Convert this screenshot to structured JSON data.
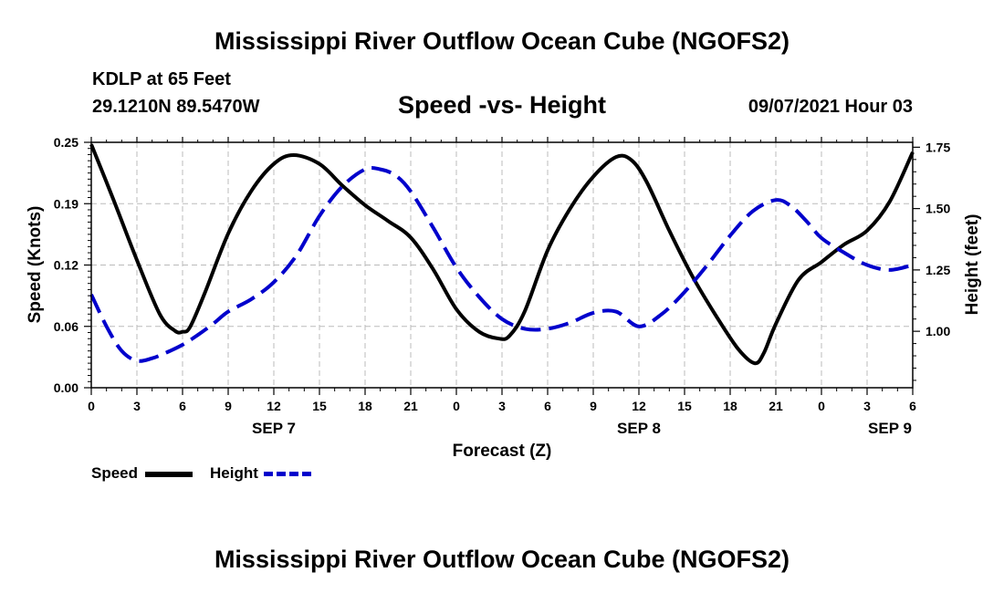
{
  "header": {
    "title": "Mississippi River Outflow Ocean Cube (NGOFS2)",
    "station": "KDLP at 65 Feet",
    "coordinates": "29.1210N  89.5470W",
    "chart_heading": "Speed -vs- Height",
    "run_time": "09/07/2021 Hour 03"
  },
  "footer": {
    "title": "Mississippi River Outflow Ocean Cube (NGOFS2)"
  },
  "legend": {
    "speed_label": "Speed",
    "height_label": "Height"
  },
  "colors": {
    "speed": "#000000",
    "height": "#0000cc",
    "grid": "#bbbbbb"
  },
  "chart_data": {
    "type": "line",
    "title": "Speed -vs- Height",
    "xlabel": "Forecast (Z)",
    "ylabel": "Speed (Knots)",
    "y2label": "Height (feet)",
    "x_unit": "forecast hours from 09/07/2021 00Z",
    "xlim": [
      0,
      54
    ],
    "ylim": [
      0,
      0.25
    ],
    "y2lim": [
      0.77,
      1.77
    ],
    "x_ticks": [
      0,
      3,
      6,
      9,
      12,
      15,
      18,
      21,
      24,
      27,
      30,
      33,
      36,
      39,
      42,
      45,
      48,
      51,
      54
    ],
    "x_tick_labels": [
      "0",
      "3",
      "6",
      "9",
      "12",
      "15",
      "18",
      "21",
      "0",
      "3",
      "6",
      "9",
      "12",
      "15",
      "18",
      "21",
      "0",
      "3",
      "6"
    ],
    "y_ticks": [
      0,
      0.0625,
      0.125,
      0.1875,
      0.25
    ],
    "y_tick_labels": [
      "0.00",
      "0.06",
      "0.12",
      "0.19",
      "0.25"
    ],
    "y2_ticks": [
      1.0,
      1.25,
      1.5,
      1.75
    ],
    "y2_tick_labels": [
      "1.00",
      "1.25",
      "1.50",
      "1.75"
    ],
    "date_labels": [
      {
        "x": 12,
        "label": "SEP 7"
      },
      {
        "x": 36,
        "label": "SEP 8"
      },
      {
        "x": 52.5,
        "label": "SEP 9"
      }
    ],
    "grid": true,
    "series": [
      {
        "name": "Speed",
        "axis": "left",
        "style": "solid",
        "x": [
          0,
          1.5,
          3,
          4.5,
          5.5,
          6,
          6.5,
          7.5,
          9,
          10.5,
          12,
          13.3,
          15,
          16.5,
          18,
          19.5,
          21,
          22.5,
          24,
          25.5,
          26.8,
          27.5,
          28.5,
          30,
          31.5,
          33,
          34.5,
          35.5,
          36.5,
          38,
          39.5,
          41,
          42.5,
          43.6,
          44.2,
          45,
          46.5,
          48,
          49.5,
          51,
          52.5,
          54
        ],
        "values": [
          0.248,
          0.19,
          0.13,
          0.075,
          0.058,
          0.057,
          0.062,
          0.098,
          0.157,
          0.2,
          0.228,
          0.237,
          0.228,
          0.206,
          0.186,
          0.17,
          0.153,
          0.12,
          0.08,
          0.057,
          0.05,
          0.053,
          0.078,
          0.14,
          0.183,
          0.215,
          0.235,
          0.232,
          0.21,
          0.16,
          0.114,
          0.075,
          0.04,
          0.025,
          0.035,
          0.065,
          0.11,
          0.128,
          0.146,
          0.16,
          0.19,
          0.24
        ]
      },
      {
        "name": "Height",
        "axis": "right",
        "style": "dashed",
        "x": [
          0,
          1,
          2,
          3,
          4,
          5,
          6,
          7,
          8,
          9,
          10.5,
          12,
          13.5,
          15,
          16.5,
          18,
          19,
          20,
          21,
          22.5,
          24,
          25.5,
          27,
          28.5,
          30,
          31.5,
          33,
          34.5,
          36,
          37.5,
          39,
          40.5,
          42,
          43.5,
          45,
          46,
          47,
          48,
          49.5,
          51,
          52.5,
          54
        ],
        "values": [
          1.15,
          1.02,
          0.92,
          0.88,
          0.89,
          0.915,
          0.945,
          0.985,
          1.03,
          1.08,
          1.13,
          1.2,
          1.31,
          1.47,
          1.59,
          1.66,
          1.66,
          1.635,
          1.57,
          1.42,
          1.26,
          1.14,
          1.05,
          1.01,
          1.01,
          1.035,
          1.075,
          1.08,
          1.02,
          1.07,
          1.16,
          1.27,
          1.39,
          1.49,
          1.535,
          1.51,
          1.45,
          1.38,
          1.32,
          1.27,
          1.25,
          1.27
        ]
      }
    ]
  }
}
